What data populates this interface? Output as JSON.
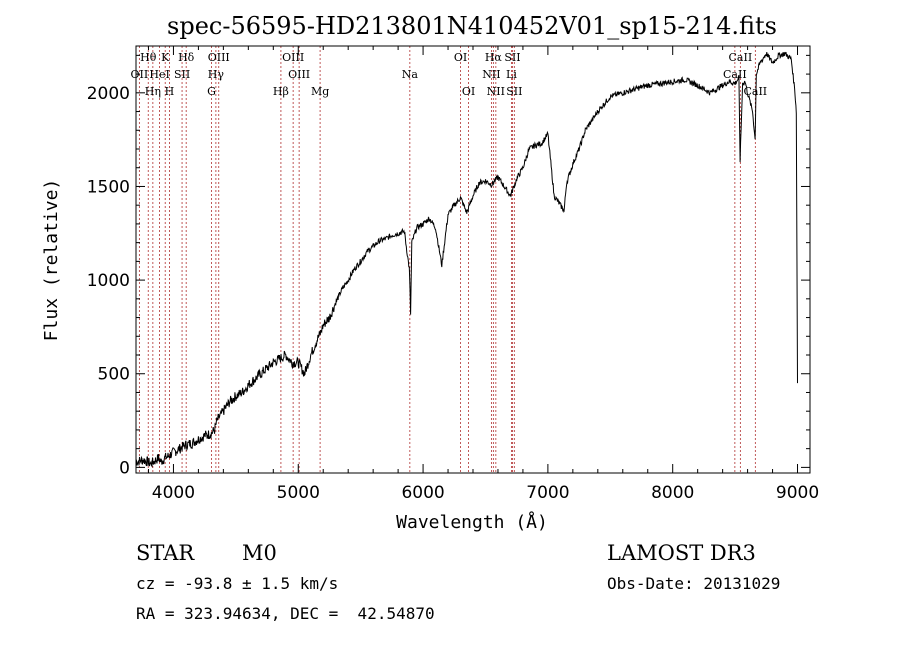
{
  "chart_data": {
    "type": "line",
    "title": "spec-56595-HD213801N410452V01_sp15-214.fits",
    "xlabel": "Wavelength (Å)",
    "ylabel": "Flux (relative)",
    "xlim": [
      3700,
      9100
    ],
    "ylim": [
      -30,
      2250
    ],
    "x_ticks": [
      4000,
      5000,
      6000,
      7000,
      8000,
      9000
    ],
    "y_ticks": [
      0,
      500,
      1000,
      1500,
      2000
    ],
    "x_tick_labels": [
      "4000",
      "5000",
      "6000",
      "7000",
      "8000",
      "9000"
    ],
    "y_tick_labels": [
      "0",
      "500",
      "1000",
      "1500",
      "2000"
    ],
    "line_color": "#000000",
    "marker_color": "#b03030",
    "series": [
      {
        "name": "flux",
        "x": [
          3700,
          3760,
          3820,
          3880,
          3900,
          3930,
          3960,
          3980,
          4000,
          4050,
          4100,
          4150,
          4200,
          4250,
          4300,
          4330,
          4350,
          4400,
          4450,
          4500,
          4550,
          4600,
          4650,
          4700,
          4750,
          4800,
          4850,
          4900,
          4950,
          5000,
          5050,
          5100,
          5150,
          5180,
          5200,
          5250,
          5300,
          5350,
          5400,
          5450,
          5500,
          5550,
          5600,
          5650,
          5700,
          5750,
          5800,
          5850,
          5890,
          5900,
          5910,
          5950,
          6000,
          6050,
          6100,
          6150,
          6200,
          6250,
          6300,
          6350,
          6400,
          6450,
          6500,
          6550,
          6600,
          6650,
          6700,
          6750,
          6800,
          6850,
          6900,
          6950,
          7000,
          7050,
          7100,
          7130,
          7150,
          7200,
          7250,
          7300,
          7400,
          7500,
          7600,
          7700,
          7800,
          7900,
          8000,
          8100,
          8200,
          8300,
          8400,
          8450,
          8500,
          8530,
          8540,
          8560,
          8580,
          8600,
          8640,
          8660,
          8670,
          8700,
          8750,
          8800,
          8850,
          8900,
          8950,
          8980,
          8990,
          9000
        ],
        "y": [
          30,
          40,
          20,
          50,
          30,
          50,
          60,
          70,
          80,
          100,
          120,
          130,
          150,
          170,
          180,
          200,
          250,
          300,
          350,
          380,
          400,
          440,
          470,
          500,
          530,
          560,
          580,
          600,
          560,
          560,
          500,
          600,
          680,
          720,
          760,
          800,
          880,
          950,
          1000,
          1060,
          1100,
          1150,
          1180,
          1210,
          1220,
          1240,
          1250,
          1260,
          1060,
          820,
          1200,
          1280,
          1300,
          1330,
          1280,
          1080,
          1350,
          1400,
          1440,
          1360,
          1450,
          1520,
          1530,
          1510,
          1550,
          1500,
          1450,
          1540,
          1600,
          1700,
          1720,
          1730,
          1780,
          1450,
          1400,
          1370,
          1520,
          1620,
          1700,
          1800,
          1900,
          1980,
          2000,
          2020,
          2040,
          2050,
          2060,
          2070,
          2040,
          2000,
          2040,
          2060,
          2050,
          2080,
          1640,
          2050,
          2060,
          2000,
          1900,
          1750,
          2100,
          2160,
          2210,
          2160,
          2200,
          2210,
          2180,
          2000,
          1900,
          450
        ]
      }
    ],
    "lines": [
      {
        "name": "Hθ",
        "x": 3798,
        "row": 1
      },
      {
        "name": "OII",
        "x": 3727,
        "row": 2
      },
      {
        "name": "HeI",
        "x": 3889,
        "row": 2
      },
      {
        "name": "K",
        "x": 3934,
        "row": 1
      },
      {
        "name": "Hδ",
        "x": 4102,
        "row": 1
      },
      {
        "name": "SII",
        "x": 4069,
        "row": 2
      },
      {
        "name": "Hη",
        "x": 3835,
        "row": 3
      },
      {
        "name": "H",
        "x": 3968,
        "row": 3
      },
      {
        "name": "OIII",
        "x": 4363,
        "row": 1
      },
      {
        "name": "Hγ",
        "x": 4340,
        "row": 2
      },
      {
        "name": "G",
        "x": 4305,
        "row": 3
      },
      {
        "name": "OIII",
        "x": 4959,
        "row": 1
      },
      {
        "name": "OIII",
        "x": 5007,
        "row": 2
      },
      {
        "name": "Hβ",
        "x": 4861,
        "row": 3
      },
      {
        "name": "Mg",
        "x": 5175,
        "row": 3
      },
      {
        "name": "Na",
        "x": 5894,
        "row": 2
      },
      {
        "name": "OI",
        "x": 6300,
        "row": 1
      },
      {
        "name": "OI",
        "x": 6364,
        "row": 3
      },
      {
        "name": "Hα",
        "x": 6563,
        "row": 1
      },
      {
        "name": "SII",
        "x": 6716,
        "row": 1
      },
      {
        "name": "NII",
        "x": 6548,
        "row": 2
      },
      {
        "name": "Li",
        "x": 6708,
        "row": 2
      },
      {
        "name": "NII",
        "x": 6583,
        "row": 3
      },
      {
        "name": "SII",
        "x": 6731,
        "row": 3
      },
      {
        "name": "CaII",
        "x": 8542,
        "row": 1
      },
      {
        "name": "CaII",
        "x": 8498,
        "row": 2
      },
      {
        "name": "CaII",
        "x": 8662,
        "row": 3
      }
    ]
  },
  "info": {
    "object_class": "STAR",
    "subclass": "M0",
    "survey": "LAMOST DR3",
    "cz": "cz = -93.8 ± 1.5 km/s",
    "obs_date": "Obs-Date: 20131029",
    "coords": "RA = 323.94634, DEC =  42.54870"
  }
}
